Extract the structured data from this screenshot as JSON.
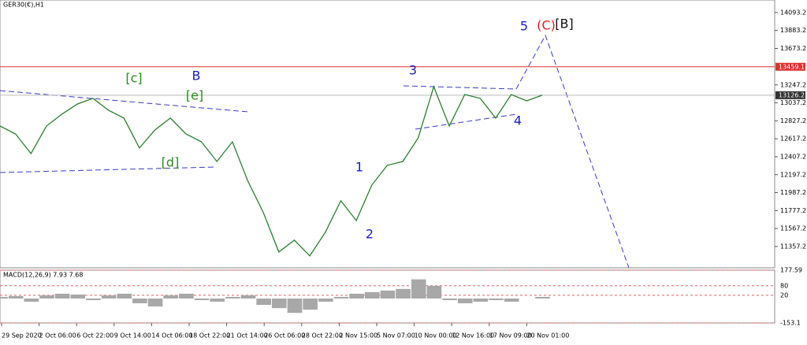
{
  "chart_data": {
    "type": "line",
    "title": "GER30(€),H1",
    "color": "#2e7d32",
    "values": [
      12766,
      12674,
      12444,
      12766,
      12905,
      13024,
      13089,
      12951,
      12859,
      12509,
      12720,
      12859,
      12674,
      12582,
      12352,
      12582,
      12122,
      11753,
      11293,
      11431,
      11247,
      11523,
      11892,
      11661,
      12076,
      12306,
      12352,
      12628,
      13227,
      12766,
      13135,
      13089,
      12859,
      13135,
      13061,
      13126.2
    ],
    "ylim": [
      11108,
      14240
    ],
    "yticks": [
      14093.2,
      13883.2,
      13673.2,
      13247.2,
      13037.2,
      12827.2,
      12617.2,
      12407.2,
      12197.2,
      11987.2,
      11777.2,
      11567.2,
      11357.2
    ],
    "level": 13459.1,
    "current_price": 13126.2,
    "x_labels": [
      "29 Sep 2020",
      "2 Oct 06:00",
      "6 Oct 22:00",
      "9 Oct 14:00",
      "14 Oct 06:00",
      "18 Oct 22:00",
      "21 Oct 14:00",
      "26 Oct 06:00",
      "28 Oct 22:00",
      "2 Nov 15:00",
      "5 Nov 07:00",
      "10 Nov 00:00",
      "12 Nov 16:00",
      "17 Nov 09:00",
      "20 Nov 01:00"
    ],
    "annotations": [
      {
        "text": "[c]",
        "color": "#2e8b22"
      },
      {
        "text": "B",
        "color": "#1a1acc"
      },
      {
        "text": "[e]",
        "color": "#2e8b22"
      },
      {
        "text": "[d]",
        "color": "#2e8b22"
      },
      {
        "text": "1",
        "color": "#1a1acc"
      },
      {
        "text": "2",
        "color": "#1a1acc"
      },
      {
        "text": "3",
        "color": "#1a1acc"
      },
      {
        "text": "4",
        "color": "#1a1acc"
      },
      {
        "text": "5",
        "color": "#1a1acc"
      },
      {
        "text": "(C)",
        "color": "#e02020"
      },
      {
        "text": "[B]",
        "color": "#111111"
      }
    ],
    "macd": {
      "title": "MACD(12,26,9) 7.93 7.68",
      "color": "#a8a8a8",
      "values": [
        10,
        15,
        -20,
        20,
        30,
        25,
        -10,
        20,
        30,
        -30,
        -50,
        20,
        30,
        -10,
        -20,
        10,
        20,
        -40,
        -60,
        -90,
        -70,
        -20,
        10,
        30,
        40,
        50,
        60,
        120,
        80,
        -10,
        -30,
        -20,
        -10,
        -20,
        0,
        10
      ],
      "ylim": [
        -153.1,
        177.59
      ],
      "yticks": [
        177.59,
        80,
        20,
        -153.1
      ]
    }
  }
}
